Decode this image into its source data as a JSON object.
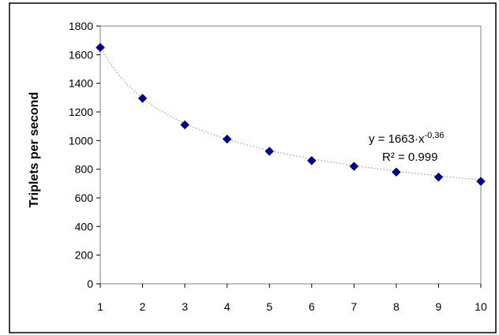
{
  "chart_data": {
    "type": "scatter",
    "title": "",
    "xlabel": "",
    "ylabel": "Triplets per second",
    "xlim": [
      1,
      10
    ],
    "ylim": [
      0,
      1800
    ],
    "x_ticks": [
      1,
      2,
      3,
      4,
      5,
      6,
      7,
      8,
      9,
      10
    ],
    "y_ticks": [
      0,
      200,
      400,
      600,
      800,
      1000,
      1200,
      1400,
      1600,
      1800
    ],
    "grid": false,
    "legend": "none",
    "series": [
      {
        "x": [
          1,
          2,
          3,
          4,
          5,
          6,
          7,
          8,
          9,
          10
        ],
        "values": [
          1650,
          1295,
          1110,
          1010,
          925,
          860,
          820,
          780,
          745,
          715
        ],
        "marker": "diamond",
        "color": "#00007f"
      }
    ],
    "trendline": {
      "type": "power",
      "coefficient": 1663,
      "exponent": -0.36,
      "color": "#a0a0a0",
      "style": "dotted"
    },
    "annotations": {
      "equation_main": "y = 1663·x",
      "equation_exponent": "-0,36",
      "r_squared": "R² = 0.999"
    }
  }
}
